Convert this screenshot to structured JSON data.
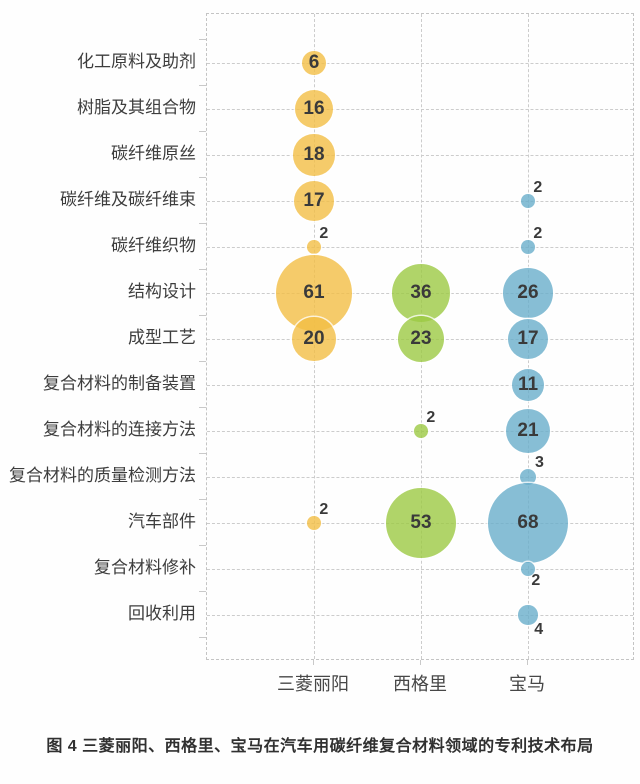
{
  "figure": {
    "caption": "图 4 三菱丽阳、西格里、宝马在汽车用碳纤维复合材料领域的专利技术布局"
  },
  "chart_data": {
    "type": "bubble",
    "title": "图 4 三菱丽阳、西格里、宝马在汽车用碳纤维复合材料领域的专利技术布局",
    "x_categories": [
      "三菱丽阳",
      "西格里",
      "宝马"
    ],
    "y_categories": [
      "化工原料及助剂",
      "树脂及其组合物",
      "碳纤维原丝",
      "碳纤维及碳纤维束",
      "碳纤维织物",
      "结构设计",
      "成型工艺",
      "复合材料的制备装置",
      "复合材料的连接方法",
      "复合材料的质量检测方法",
      "汽车部件",
      "复合材料修补",
      "回收利用"
    ],
    "size_encoding": "bubble radius proportional to sqrt(value)",
    "grid": "dashed, on",
    "legend_position": "none",
    "series": [
      {
        "name": "三菱丽阳",
        "color": "#F2BE45",
        "points": [
          {
            "category": "化工原料及助剂",
            "value": 6,
            "label_pos": "inside"
          },
          {
            "category": "树脂及其组合物",
            "value": 16,
            "label_pos": "inside"
          },
          {
            "category": "碳纤维原丝",
            "value": 18,
            "label_pos": "inside"
          },
          {
            "category": "碳纤维及碳纤维束",
            "value": 17,
            "label_pos": "inside"
          },
          {
            "category": "碳纤维织物",
            "value": 2,
            "label_pos": "top-right"
          },
          {
            "category": "结构设计",
            "value": 61,
            "label_pos": "inside"
          },
          {
            "category": "成型工艺",
            "value": 20,
            "label_pos": "inside"
          },
          {
            "category": "汽车部件",
            "value": 2,
            "label_pos": "top-right"
          }
        ]
      },
      {
        "name": "西格里",
        "color": "#9CC943",
        "points": [
          {
            "category": "结构设计",
            "value": 36,
            "label_pos": "inside"
          },
          {
            "category": "成型工艺",
            "value": 23,
            "label_pos": "inside"
          },
          {
            "category": "复合材料的连接方法",
            "value": 2,
            "label_pos": "top-right"
          },
          {
            "category": "汽车部件",
            "value": 53,
            "label_pos": "inside"
          }
        ]
      },
      {
        "name": "宝马",
        "color": "#69AECB",
        "points": [
          {
            "category": "碳纤维及碳纤维束",
            "value": 2,
            "label_pos": "top-right"
          },
          {
            "category": "碳纤维织物",
            "value": 2,
            "label_pos": "top-right"
          },
          {
            "category": "结构设计",
            "value": 26,
            "label_pos": "inside"
          },
          {
            "category": "成型工艺",
            "value": 17,
            "label_pos": "inside"
          },
          {
            "category": "复合材料的制备装置",
            "value": 11,
            "label_pos": "inside"
          },
          {
            "category": "复合材料的连接方法",
            "value": 21,
            "label_pos": "inside"
          },
          {
            "category": "复合材料的质量检测方法",
            "value": 3,
            "label_pos": "top-right"
          },
          {
            "category": "汽车部件",
            "value": 68,
            "label_pos": "inside"
          },
          {
            "category": "复合材料修补",
            "value": 2,
            "label_pos": "bottom-right"
          },
          {
            "category": "回收利用",
            "value": 4,
            "label_pos": "bottom-right"
          }
        ]
      }
    ]
  }
}
